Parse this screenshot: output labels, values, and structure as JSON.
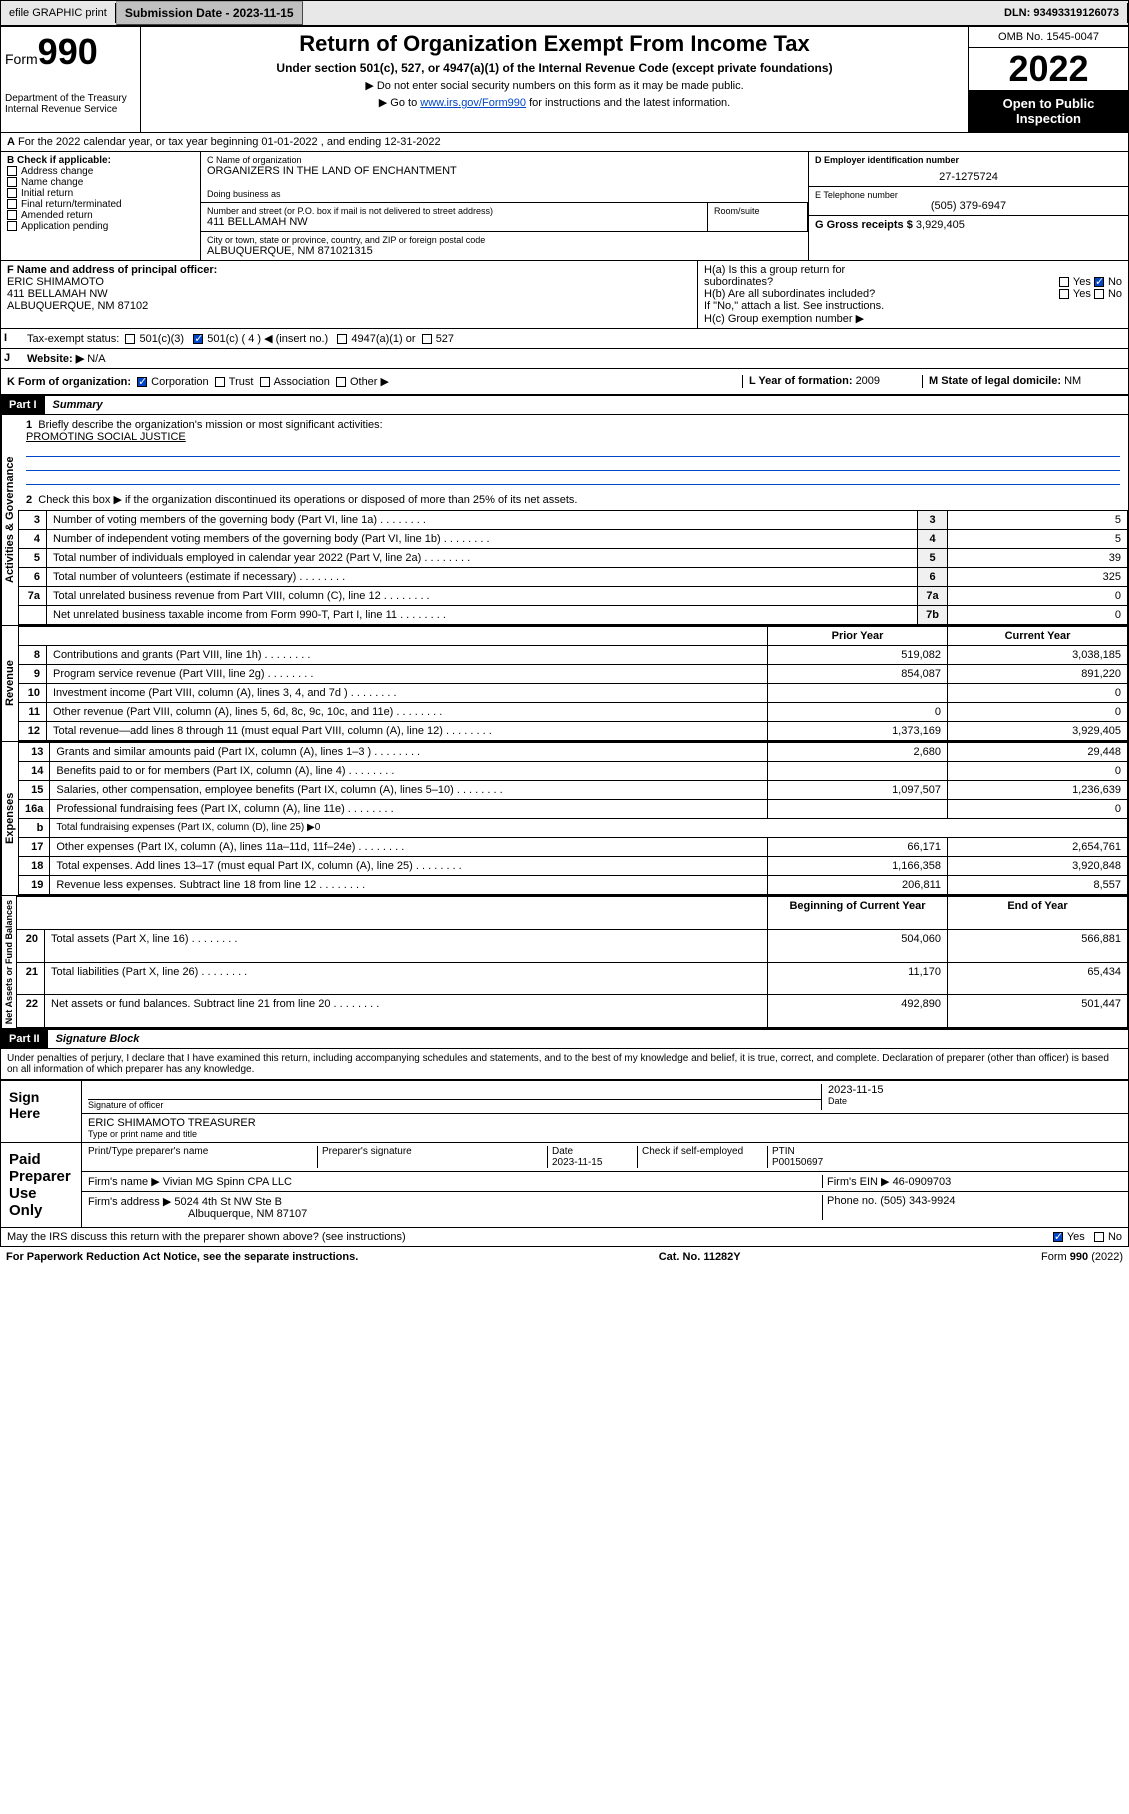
{
  "topbar": {
    "efile": "efile GRAPHIC print",
    "sub_label": "Submission Date - ",
    "sub_date": "2023-11-15",
    "dln": "DLN: 93493319126073"
  },
  "header": {
    "form_word": "Form",
    "form_num": "990",
    "dept": "Department of the Treasury",
    "irs": "Internal Revenue Service",
    "title": "Return of Organization Exempt From Income Tax",
    "subtitle": "Under section 501(c), 527, or 4947(a)(1) of the Internal Revenue Code (except private foundations)",
    "note1": "▶ Do not enter social security numbers on this form as it may be made public.",
    "note2_pre": "▶ Go to ",
    "note2_link": "www.irs.gov/Form990",
    "note2_post": " for instructions and the latest information.",
    "omb": "OMB No. 1545-0047",
    "year": "2022",
    "open": "Open to Public Inspection"
  },
  "line_a": "For the 2022 calendar year, or tax year beginning 01-01-2022    , and ending 12-31-2022",
  "box_b": {
    "title": "B Check if applicable:",
    "items": [
      "Address change",
      "Name change",
      "Initial return",
      "Final return/terminated",
      "Amended return",
      "Application pending"
    ]
  },
  "box_c": {
    "name_lbl": "C Name of organization",
    "name": "ORGANIZERS IN THE LAND OF ENCHANTMENT",
    "dba_lbl": "Doing business as",
    "addr_lbl": "Number and street (or P.O. box if mail is not delivered to street address)",
    "room_lbl": "Room/suite",
    "addr": "411 BELLAMAH NW",
    "city_lbl": "City or town, state or province, country, and ZIP or foreign postal code",
    "city": "ALBUQUERQUE, NM  871021315"
  },
  "box_d": {
    "lbl": "D Employer identification number",
    "val": "27-1275724"
  },
  "box_e": {
    "lbl": "E Telephone number",
    "val": "(505) 379-6947"
  },
  "box_g": {
    "lbl": "G Gross receipts $ ",
    "val": "3,929,405"
  },
  "box_f": {
    "lbl": "F Name and address of principal officer:",
    "name": "ERIC SHIMAMOTO",
    "addr1": "411 BELLAMAH NW",
    "addr2": "ALBUQUERQUE, NM  87102"
  },
  "box_h": {
    "a1": "H(a)  Is this a group return for",
    "a2": "subordinates?",
    "b1": "H(b)  Are all subordinates",
    "b2": "included?",
    "b3": "If \"No,\" attach a list. See instructions.",
    "c": "H(c)  Group exemption number ▶",
    "yes": "Yes",
    "no": "No"
  },
  "line_i": {
    "lbl": "Tax-exempt status:",
    "t1": "501(c)(3)",
    "t2": "501(c) ( 4 ) ◀ (insert no.)",
    "t3": "4947(a)(1) or",
    "t4": "527"
  },
  "line_j": {
    "lbl": "Website: ▶",
    "val": "N/A"
  },
  "line_k": {
    "lbl": "K Form of organization:",
    "opts": [
      "Corporation",
      "Trust",
      "Association",
      "Other ▶"
    ],
    "l_lbl": "L Year of formation: ",
    "l_val": "2009",
    "m_lbl": "M State of legal domicile: ",
    "m_val": "NM"
  },
  "part1": {
    "hdr": "Part I",
    "title": "Summary",
    "q1": "Briefly describe the organization's mission or most significant activities:",
    "mission": "PROMOTING SOCIAL JUSTICE",
    "q2": "Check this box ▶         if the organization discontinued its operations or disposed of more than 25% of its net assets.",
    "sections": {
      "ag": "Activities & Governance",
      "rev": "Revenue",
      "exp": "Expenses",
      "na": "Net Assets or Fund Balances"
    },
    "rows_ag": [
      {
        "n": "3",
        "d": "Number of voting members of the governing body (Part VI, line 1a)",
        "b": "3",
        "v": "5"
      },
      {
        "n": "4",
        "d": "Number of independent voting members of the governing body (Part VI, line 1b)",
        "b": "4",
        "v": "5"
      },
      {
        "n": "5",
        "d": "Total number of individuals employed in calendar year 2022 (Part V, line 2a)",
        "b": "5",
        "v": "39"
      },
      {
        "n": "6",
        "d": "Total number of volunteers (estimate if necessary)",
        "b": "6",
        "v": "325"
      },
      {
        "n": "7a",
        "d": "Total unrelated business revenue from Part VIII, column (C), line 12",
        "b": "7a",
        "v": "0"
      },
      {
        "n": "",
        "d": "Net unrelated business taxable income from Form 990-T, Part I, line 11",
        "b": "7b",
        "v": "0"
      }
    ],
    "hdr_prior": "Prior Year",
    "hdr_curr": "Current Year",
    "rows_rev": [
      {
        "n": "8",
        "d": "Contributions and grants (Part VIII, line 1h)",
        "p": "519,082",
        "c": "3,038,185"
      },
      {
        "n": "9",
        "d": "Program service revenue (Part VIII, line 2g)",
        "p": "854,087",
        "c": "891,220"
      },
      {
        "n": "10",
        "d": "Investment income (Part VIII, column (A), lines 3, 4, and 7d )",
        "p": "",
        "c": "0"
      },
      {
        "n": "11",
        "d": "Other revenue (Part VIII, column (A), lines 5, 6d, 8c, 9c, 10c, and 11e)",
        "p": "0",
        "c": "0"
      },
      {
        "n": "12",
        "d": "Total revenue—add lines 8 through 11 (must equal Part VIII, column (A), line 12)",
        "p": "1,373,169",
        "c": "3,929,405"
      }
    ],
    "rows_exp": [
      {
        "n": "13",
        "d": "Grants and similar amounts paid (Part IX, column (A), lines 1–3 )",
        "p": "2,680",
        "c": "29,448"
      },
      {
        "n": "14",
        "d": "Benefits paid to or for members (Part IX, column (A), line 4)",
        "p": "",
        "c": "0"
      },
      {
        "n": "15",
        "d": "Salaries, other compensation, employee benefits (Part IX, column (A), lines 5–10)",
        "p": "1,097,507",
        "c": "1,236,639"
      },
      {
        "n": "16a",
        "d": "Professional fundraising fees (Part IX, column (A), line 11e)",
        "p": "",
        "c": "0"
      },
      {
        "n": "b",
        "d": "Total fundraising expenses (Part IX, column (D), line 25) ▶0",
        "p": "—",
        "c": "—"
      },
      {
        "n": "17",
        "d": "Other expenses (Part IX, column (A), lines 11a–11d, 11f–24e)",
        "p": "66,171",
        "c": "2,654,761"
      },
      {
        "n": "18",
        "d": "Total expenses. Add lines 13–17 (must equal Part IX, column (A), line 25)",
        "p": "1,166,358",
        "c": "3,920,848"
      },
      {
        "n": "19",
        "d": "Revenue less expenses. Subtract line 18 from line 12",
        "p": "206,811",
        "c": "8,557"
      }
    ],
    "hdr_beg": "Beginning of Current Year",
    "hdr_end": "End of Year",
    "rows_na": [
      {
        "n": "20",
        "d": "Total assets (Part X, line 16)",
        "p": "504,060",
        "c": "566,881"
      },
      {
        "n": "21",
        "d": "Total liabilities (Part X, line 26)",
        "p": "11,170",
        "c": "65,434"
      },
      {
        "n": "22",
        "d": "Net assets or fund balances. Subtract line 21 from line 20",
        "p": "492,890",
        "c": "501,447"
      }
    ]
  },
  "part2": {
    "hdr": "Part II",
    "title": "Signature Block",
    "decl": "Under penalties of perjury, I declare that I have examined this return, including accompanying schedules and statements, and to the best of my knowledge and belief, it is true, correct, and complete. Declaration of preparer (other than officer) is based on all information of which preparer has any knowledge.",
    "sign_here": "Sign Here",
    "sig_officer": "Signature of officer",
    "sig_date": "Date",
    "sig_date_val": "2023-11-15",
    "officer": "ERIC SHIMAMOTO  TREASURER",
    "type_name": "Type or print name and title",
    "paid": "Paid Preparer Use Only",
    "prep_name_lbl": "Print/Type preparer's name",
    "prep_sig_lbl": "Preparer's signature",
    "prep_date_lbl": "Date",
    "prep_date": "2023-11-15",
    "check_lbl": "Check          if self-employed",
    "ptin_lbl": "PTIN",
    "ptin": "P00150697",
    "firm_name_lbl": "Firm's name    ▶ ",
    "firm_name": "Vivian MG Spinn CPA LLC",
    "firm_ein_lbl": "Firm's EIN ▶ ",
    "firm_ein": "46-0909703",
    "firm_addr_lbl": "Firm's address ▶ ",
    "firm_addr1": "5024 4th St NW Ste B",
    "firm_addr2": "Albuquerque, NM  87107",
    "phone_lbl": "Phone no. ",
    "phone": "(505) 343-9924",
    "discuss": "May the IRS discuss this return with the preparer shown above? (see instructions)",
    "yes": "Yes",
    "no": "No"
  },
  "footer": {
    "pra": "For Paperwork Reduction Act Notice, see the separate instructions.",
    "cat": "Cat. No. 11282Y",
    "form": "Form 990 (2022)"
  },
  "colors": {
    "link": "#0046c7",
    "check": "#0046c7"
  }
}
